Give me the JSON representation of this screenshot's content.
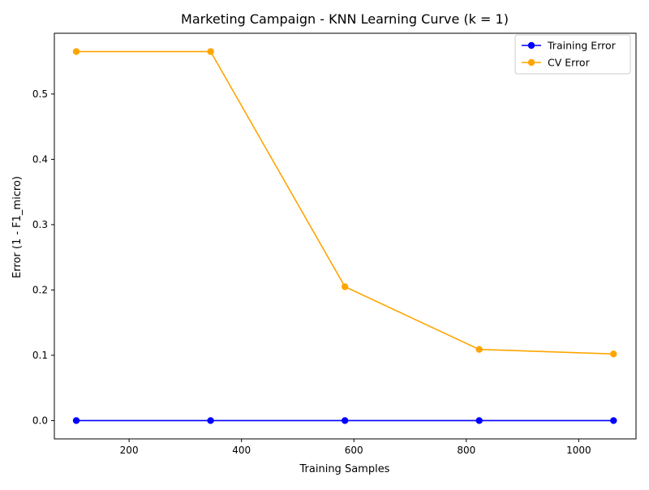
{
  "chart_data": {
    "type": "line",
    "title": "Marketing Campaign - KNN Learning Curve (k = 1)",
    "xlabel": "Training Samples",
    "ylabel": "Error (1 - F1_micro)",
    "x": [
      106,
      345,
      584,
      823,
      1062
    ],
    "xlim": [
      67,
      1102
    ],
    "ylim": [
      -0.028,
      0.593
    ],
    "xticks": [
      200,
      400,
      600,
      800,
      1000
    ],
    "yticks": [
      0.0,
      0.1,
      0.2,
      0.3,
      0.4,
      0.5
    ],
    "xtick_labels": [
      "200",
      "400",
      "600",
      "800",
      "1000"
    ],
    "ytick_labels": [
      "0.0",
      "0.1",
      "0.2",
      "0.3",
      "0.4",
      "0.5"
    ],
    "grid": false,
    "legend_position": "top-right",
    "series": [
      {
        "name": "Training Error",
        "color": "#0000ff",
        "marker": "circle",
        "values": [
          0.0,
          0.0,
          0.0,
          0.0,
          0.0
        ]
      },
      {
        "name": "CV Error",
        "color": "#ffa500",
        "marker": "circle",
        "values": [
          0.565,
          0.565,
          0.205,
          0.109,
          0.102
        ]
      }
    ]
  }
}
